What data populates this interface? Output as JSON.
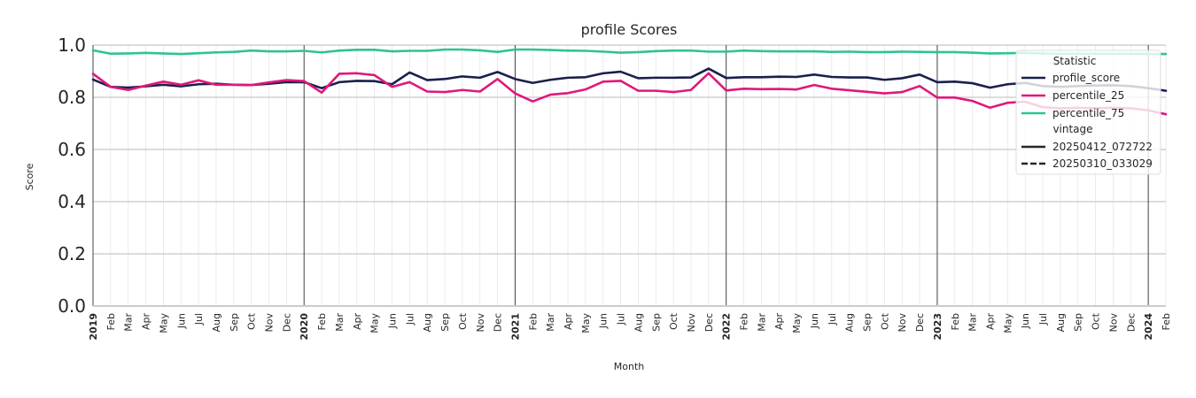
{
  "chart_data": {
    "type": "line",
    "title": "profile Scores",
    "xlabel": "Month",
    "ylabel": "Score",
    "ylim": [
      0,
      1
    ],
    "yticks": [
      "0.0",
      "0.2",
      "0.4",
      "0.6",
      "0.8",
      "1.0"
    ],
    "x_start": "2019-01",
    "x_end": "2024-02",
    "x_ticks": [
      "2019",
      "Feb",
      "Mar",
      "Apr",
      "May",
      "Jun",
      "Jul",
      "Aug",
      "Sep",
      "Oct",
      "Nov",
      "Dec",
      "2020",
      "Feb",
      "Mar",
      "Apr",
      "May",
      "Jun",
      "Jul",
      "Aug",
      "Sep",
      "Oct",
      "Nov",
      "Dec",
      "2021",
      "Feb",
      "Mar",
      "Apr",
      "May",
      "Jun",
      "Jul",
      "Aug",
      "Sep",
      "Oct",
      "Nov",
      "Dec",
      "2022",
      "Feb",
      "Mar",
      "Apr",
      "May",
      "Jun",
      "Jul",
      "Aug",
      "Sep",
      "Oct",
      "Nov",
      "Dec",
      "2023",
      "Feb",
      "Mar",
      "Apr",
      "May",
      "Jun",
      "Jul",
      "Aug",
      "Sep",
      "Oct",
      "Nov",
      "Dec",
      "2024",
      "Feb"
    ],
    "grid": true,
    "legend_position": "top-right",
    "legend": {
      "hue_title": "Statistic",
      "style_title": "vintage",
      "style_entries": [
        {
          "name": "20250412_072722",
          "dash": "solid"
        },
        {
          "name": "20250310_033029",
          "dash": "dashed"
        }
      ]
    },
    "series": [
      {
        "name": "profile_score",
        "color": "#1b1f4d",
        "values": [
          0.868,
          0.84,
          0.837,
          0.842,
          0.848,
          0.842,
          0.85,
          0.852,
          0.848,
          0.847,
          0.852,
          0.858,
          0.858,
          0.835,
          0.858,
          0.863,
          0.862,
          0.85,
          0.895,
          0.866,
          0.87,
          0.88,
          0.875,
          0.897,
          0.87,
          0.855,
          0.867,
          0.875,
          0.877,
          0.892,
          0.898,
          0.873,
          0.875,
          0.875,
          0.876,
          0.91,
          0.874,
          0.877,
          0.877,
          0.879,
          0.878,
          0.887,
          0.878,
          0.876,
          0.876,
          0.867,
          0.873,
          0.887,
          0.858,
          0.86,
          0.854,
          0.837,
          0.85,
          0.855,
          0.843,
          0.84,
          0.843,
          0.845,
          0.846,
          0.843,
          0.835,
          0.825
        ]
      },
      {
        "name": "percentile_25",
        "color": "#e0187a",
        "values": [
          0.89,
          0.84,
          0.828,
          0.845,
          0.86,
          0.848,
          0.865,
          0.848,
          0.848,
          0.847,
          0.857,
          0.866,
          0.862,
          0.818,
          0.89,
          0.892,
          0.885,
          0.84,
          0.858,
          0.822,
          0.82,
          0.828,
          0.822,
          0.87,
          0.815,
          0.784,
          0.81,
          0.816,
          0.83,
          0.86,
          0.863,
          0.825,
          0.825,
          0.82,
          0.828,
          0.892,
          0.826,
          0.833,
          0.831,
          0.832,
          0.83,
          0.847,
          0.833,
          0.827,
          0.821,
          0.815,
          0.82,
          0.843,
          0.799,
          0.799,
          0.786,
          0.76,
          0.779,
          0.783,
          0.762,
          0.758,
          0.76,
          0.758,
          0.76,
          0.758,
          0.75,
          0.735
        ]
      },
      {
        "name": "percentile_75",
        "color": "#2ec48e",
        "values": [
          0.98,
          0.967,
          0.968,
          0.97,
          0.968,
          0.966,
          0.969,
          0.972,
          0.974,
          0.979,
          0.976,
          0.976,
          0.978,
          0.972,
          0.979,
          0.982,
          0.982,
          0.976,
          0.978,
          0.978,
          0.983,
          0.983,
          0.98,
          0.974,
          0.983,
          0.983,
          0.981,
          0.979,
          0.978,
          0.975,
          0.971,
          0.973,
          0.977,
          0.979,
          0.979,
          0.975,
          0.975,
          0.979,
          0.977,
          0.976,
          0.976,
          0.976,
          0.974,
          0.975,
          0.973,
          0.973,
          0.975,
          0.974,
          0.973,
          0.973,
          0.971,
          0.968,
          0.969,
          0.97,
          0.968,
          0.967,
          0.967,
          0.967,
          0.967,
          0.967,
          0.966,
          0.966
        ]
      }
    ]
  }
}
